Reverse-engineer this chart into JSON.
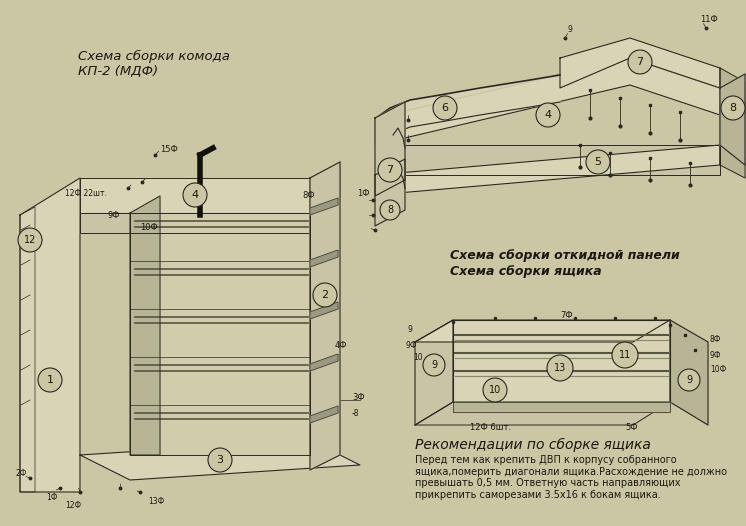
{
  "background_color": "#cbc7a4",
  "fill_light": "#d8d4b5",
  "fill_mid": "#c8c4a5",
  "fill_dark": "#b8b496",
  "line_color": "#2a2820",
  "text_color": "#1a1810",
  "title_main": "Схема сборки комода\nКП-2 (МДФ)",
  "title_panel": "Схема сборки откидной панели",
  "title_drawer": "Схема сборки ящика",
  "title_rec": "Рекомендации по сборке ящика",
  "rec_text": "Перед тем как крепить ДВП к корпусу собранного\nящика,померить диагонали ящика.Расхождение не должно\nпревышать 0,5 мм. Ответную часть направляющих\nприкрепить саморезами 3.5х16 к бокам ящика.",
  "figsize": [
    7.46,
    5.26
  ],
  "dpi": 100
}
